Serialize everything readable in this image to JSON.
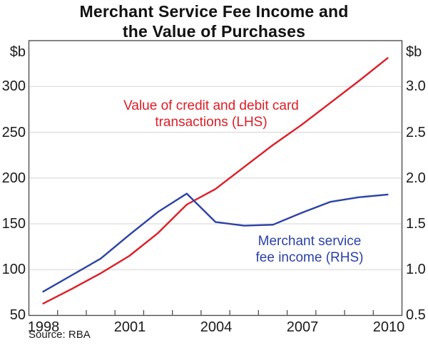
{
  "title": {
    "line1": "Merchant Service Fee Income and",
    "line2": "the Value of Purchases"
  },
  "source": "Source: RBA",
  "colors": {
    "red_line": "#dc1e26",
    "blue_line": "#2c42a5",
    "grid": "#d5d5d5",
    "frame": "#4f4f4f",
    "text": "#1a1a1a"
  },
  "annotations": {
    "red": {
      "line1": "Value of credit and debit card",
      "line2": "transactions (LHS)"
    },
    "blue": {
      "line1": "Merchant service",
      "line2": "fee income (RHS)"
    }
  },
  "left_axis": {
    "unit": "$b",
    "min": 50,
    "max": 350,
    "ticks": [
      {
        "label": "300",
        "value": 300
      },
      {
        "label": "250",
        "value": 250
      },
      {
        "label": "200",
        "value": 200
      },
      {
        "label": "150",
        "value": 150
      },
      {
        "label": "100",
        "value": 100
      },
      {
        "label": "50",
        "value": 50
      }
    ]
  },
  "right_axis": {
    "unit": "$b",
    "min": 0.5,
    "max": 3.5,
    "ticks": [
      {
        "label": "3.0",
        "value": 3.0
      },
      {
        "label": "2.5",
        "value": 2.5
      },
      {
        "label": "2.0",
        "value": 2.0
      },
      {
        "label": "1.5",
        "value": 1.5
      },
      {
        "label": "1.0",
        "value": 1.0
      },
      {
        "label": "0.5",
        "value": 0.5
      }
    ]
  },
  "x_axis": {
    "min": 1997.5,
    "max": 2010.5,
    "labels": [
      {
        "label": "1998",
        "year": 1998
      },
      {
        "label": "2001",
        "year": 2001
      },
      {
        "label": "2004",
        "year": 2004
      },
      {
        "label": "2007",
        "year": 2007
      },
      {
        "label": "2010",
        "year": 2010
      }
    ],
    "tick_years": [
      1998.5,
      1999.5,
      2000.5,
      2001.5,
      2002.5,
      2003.5,
      2004.5,
      2005.5,
      2006.5,
      2007.5,
      2008.5,
      2009.5
    ]
  },
  "chart_data": {
    "type": "line",
    "title": "Merchant Service Fee Income and the Value of Purchases",
    "x": [
      1998,
      1999,
      2000,
      2001,
      2002,
      2003,
      2004,
      2005,
      2006,
      2007,
      2008,
      2009,
      2010
    ],
    "series": [
      {
        "id": "transactions-line",
        "name": "Value of credit and debit card transactions (LHS)",
        "axis": "left",
        "unit": "$b",
        "color": "#dc1e26",
        "values": [
          63,
          79,
          96,
          115,
          140,
          171,
          188,
          212,
          236,
          258,
          282,
          306,
          331
        ]
      },
      {
        "id": "fee-income-line",
        "name": "Merchant service fee income (RHS)",
        "axis": "right",
        "unit": "$b",
        "color": "#2c42a5",
        "values": [
          0.76,
          0.94,
          1.12,
          1.38,
          1.63,
          1.83,
          1.52,
          1.48,
          1.49,
          1.62,
          1.74,
          1.79,
          1.82
        ]
      }
    ],
    "left_ylim": [
      50,
      350
    ],
    "right_ylim": [
      0.5,
      3.5
    ],
    "grid": "horizontal",
    "legend_position": "inline-annotations"
  }
}
